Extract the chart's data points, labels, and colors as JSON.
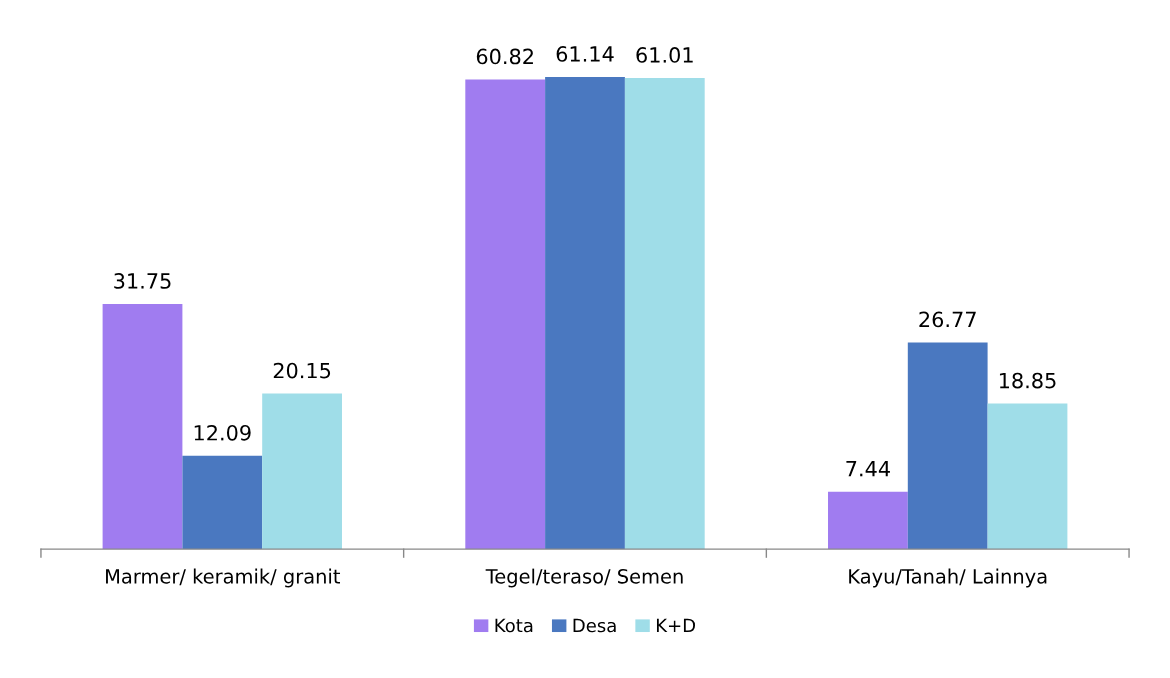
{
  "chart_data": {
    "type": "bar",
    "categories": [
      "Marmer/ keramik/ granit",
      "Tegel/teraso/ Semen",
      "Kayu/Tanah/ Lainnya"
    ],
    "series": [
      {
        "name": "Kota",
        "color": "#a07cf0",
        "values": [
          31.75,
          60.82,
          7.44
        ]
      },
      {
        "name": "Desa",
        "color": "#4a78c0",
        "values": [
          12.09,
          61.14,
          26.77
        ]
      },
      {
        "name": "K+D",
        "color": "#9fdde8",
        "values": [
          20.15,
          61.01,
          18.85
        ]
      }
    ],
    "data_labels": true,
    "legend": "bottom",
    "grid": false,
    "tick_labels": "x"
  }
}
